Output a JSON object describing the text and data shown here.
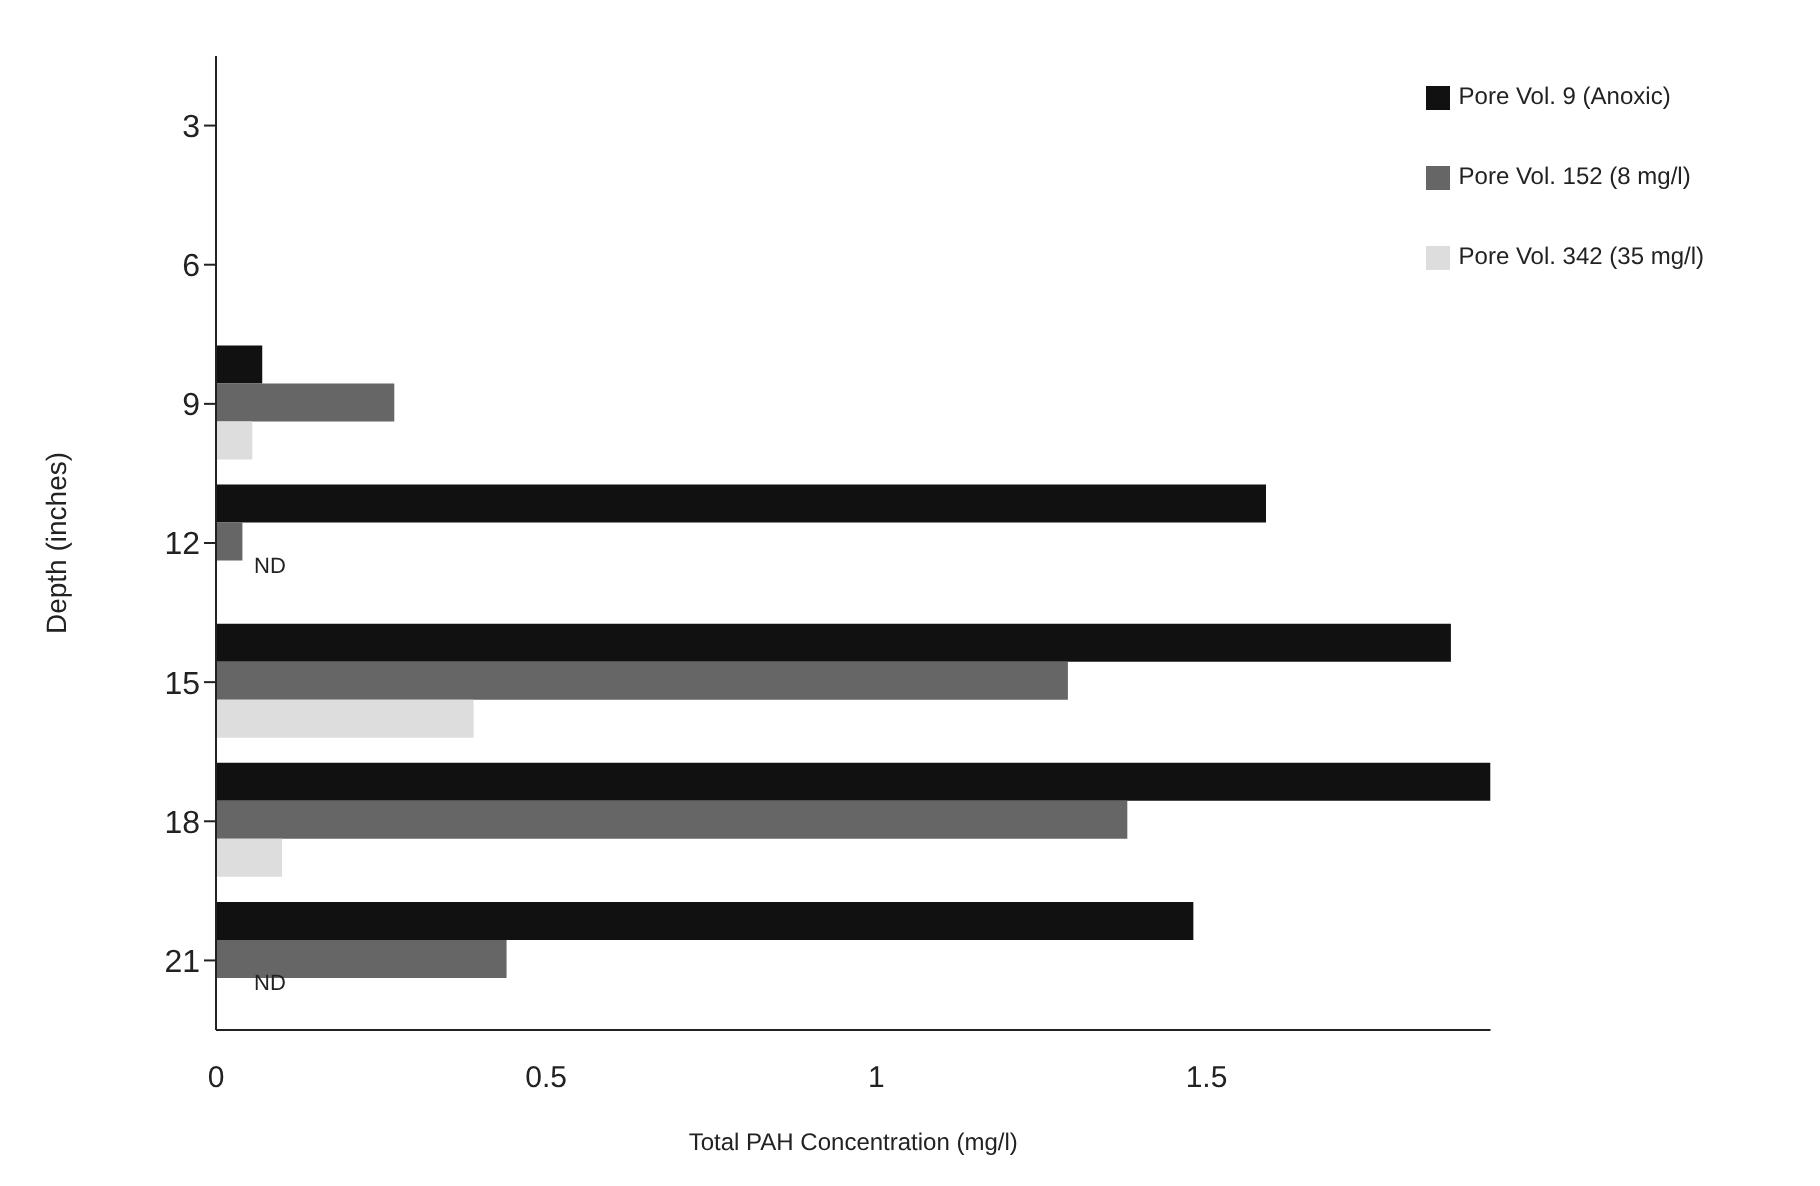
{
  "chart_data": {
    "type": "bar",
    "orientation": "horizontal",
    "xlabel": "Total PAH Concentration (mg/l)",
    "ylabel": "Depth (inches)",
    "categories": [
      "3",
      "6",
      "9",
      "12",
      "15",
      "18",
      "21"
    ],
    "series": [
      {
        "name": "Pore Vol. 9 (Anoxic)",
        "color": "#111111",
        "values": [
          0,
          0,
          0.07,
          1.59,
          1.87,
          1.93,
          1.48
        ]
      },
      {
        "name": "Pore Vol. 152 (8 mg/l)",
        "color": "#666666",
        "values": [
          0,
          0,
          0.27,
          0.04,
          1.29,
          1.38,
          0.44
        ]
      },
      {
        "name": "Pore Vol. 342 (35 mg/l)",
        "color": "#dddddd",
        "values": [
          0,
          0,
          0.055,
          null,
          0.39,
          0.1,
          null
        ]
      }
    ],
    "xlim": [
      0,
      1.93
    ],
    "xticks": [
      0,
      0.5,
      1,
      1.5
    ],
    "grid": false,
    "legend": "top right",
    "annotations": [
      {
        "text": "ND",
        "x": 0,
        "y": "12"
      },
      {
        "text": "ND",
        "x": 0,
        "y": "21"
      }
    ]
  }
}
